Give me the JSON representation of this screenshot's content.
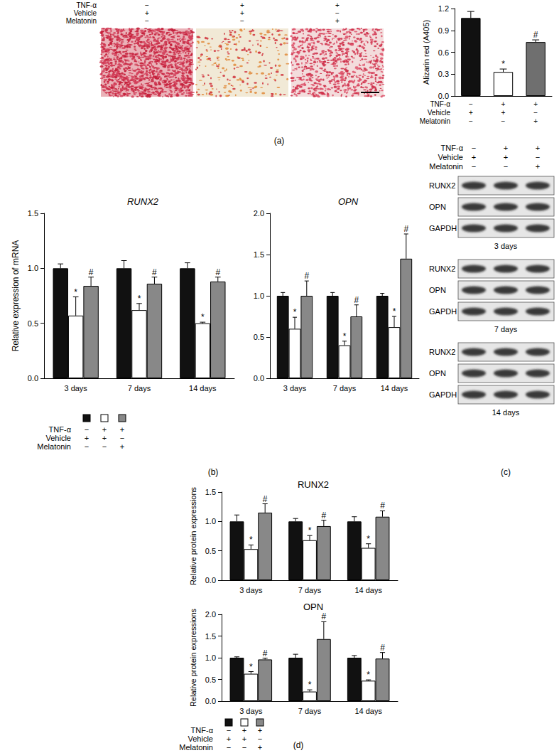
{
  "panel_labels": [
    "(a)",
    "(b)",
    "(c)",
    "(d)"
  ],
  "treatments": {
    "rows": [
      {
        "label": "TNF-α",
        "signs": [
          "−",
          "+",
          "+"
        ]
      },
      {
        "label": "Vehicle",
        "signs": [
          "+",
          "+",
          "−"
        ]
      },
      {
        "label": "Melatonin",
        "signs": [
          "−",
          "−",
          "+"
        ]
      }
    ]
  },
  "blots": {
    "rows": [
      "RUNX2",
      "OPN",
      "GAPDH"
    ],
    "times": [
      "3 days",
      "7 days",
      "14 days"
    ]
  },
  "chart_data": [
    {
      "type": "bar",
      "ylabel": "Alizarin red (A405)",
      "categories": [
        null,
        null,
        null
      ],
      "values": [
        1.07,
        0.33,
        0.74
      ],
      "errors": [
        0.09,
        0.04,
        0.03
      ],
      "annotations": [
        null,
        "*",
        "#"
      ],
      "colors": [
        "#111111",
        "#ffffff",
        "#6f6f6f"
      ],
      "ylim": [
        0,
        1.2
      ],
      "yticks": [
        {
          "value": 0,
          "label": "0.0"
        },
        0.3,
        0.6,
        0.9,
        1.2
      ],
      "grid": false
    },
    {
      "type": "bar",
      "title": "RUNX2",
      "ylabel": "Relative expression of mRNA",
      "categories": [
        "3 days",
        "7 days",
        "14 days"
      ],
      "series": [
        {
          "color": "#111111",
          "values": [
            1.0,
            1.0,
            1.0
          ],
          "errors": [
            0.04,
            0.07,
            0.05
          ],
          "annotations": [
            null,
            null,
            null
          ]
        },
        {
          "color": "#ffffff",
          "values": [
            0.57,
            0.62,
            0.5
          ],
          "errors": [
            0.17,
            0.06,
            0.01
          ],
          "annotations": [
            "*",
            "*",
            "*"
          ]
        },
        {
          "color": "#888888",
          "values": [
            0.84,
            0.86,
            0.88
          ],
          "errors": [
            0.08,
            0.06,
            0.04
          ],
          "annotations": [
            "#",
            "#",
            "#"
          ]
        }
      ],
      "ylim": [
        0,
        1.5
      ],
      "yticks": [
        {
          "value": 0,
          "label": "0.0"
        },
        0.5,
        {
          "value": 1,
          "label": "1.0"
        },
        1.5
      ],
      "grid": false
    },
    {
      "type": "bar",
      "title": "OPN",
      "categories": [
        "3 days",
        "7 days",
        "14 days"
      ],
      "series": [
        {
          "color": "#111111",
          "values": [
            1.0,
            1.0,
            1.0
          ],
          "errors": [
            0.04,
            0.04,
            0.03
          ],
          "annotations": [
            null,
            null,
            null
          ]
        },
        {
          "color": "#ffffff",
          "values": [
            0.6,
            0.4,
            0.62
          ],
          "errors": [
            0.14,
            0.05,
            0.13
          ],
          "annotations": [
            "*",
            "*",
            "*"
          ]
        },
        {
          "color": "#888888",
          "values": [
            1.0,
            0.75,
            1.45
          ],
          "errors": [
            0.18,
            0.14,
            0.3
          ],
          "annotations": [
            "#",
            "#",
            "#"
          ]
        }
      ],
      "ylim": [
        0,
        2
      ],
      "yticks": [
        {
          "value": 0,
          "label": "0.0"
        },
        0.5,
        {
          "value": 1,
          "label": "1.0"
        },
        1.5,
        {
          "value": 2,
          "label": "2.0"
        }
      ],
      "grid": false
    },
    {
      "type": "bar",
      "title": "RUNX2",
      "ylabel": "Relative protein expressions",
      "categories": [
        "3 days",
        "7 days",
        "14 days"
      ],
      "series": [
        {
          "color": "#111111",
          "values": [
            1.0,
            1.0,
            1.0
          ],
          "errors": [
            0.11,
            0.05,
            0.08
          ],
          "annotations": [
            null,
            null,
            null
          ]
        },
        {
          "color": "#ffffff",
          "values": [
            0.53,
            0.68,
            0.55
          ],
          "errors": [
            0.07,
            0.08,
            0.07
          ],
          "annotations": [
            "*",
            "*",
            "*"
          ]
        },
        {
          "color": "#888888",
          "values": [
            1.15,
            0.92,
            1.08
          ],
          "errors": [
            0.15,
            0.1,
            0.1
          ],
          "annotations": [
            "#",
            "#",
            "#"
          ]
        }
      ],
      "ylim": [
        0,
        1.5
      ],
      "yticks": [
        {
          "value": 0,
          "label": "0.0"
        },
        0.5,
        {
          "value": 1,
          "label": "1.0"
        },
        1.5
      ],
      "grid": false
    },
    {
      "type": "bar",
      "title": "OPN",
      "ylabel": "Relative protein expressions",
      "categories": [
        "3 days",
        "7 days",
        "14 days"
      ],
      "series": [
        {
          "color": "#111111",
          "values": [
            1.0,
            1.0,
            1.0
          ],
          "errors": [
            0.02,
            0.08,
            0.05
          ],
          "annotations": [
            null,
            null,
            null
          ]
        },
        {
          "color": "#ffffff",
          "values": [
            0.63,
            0.22,
            0.47
          ],
          "errors": [
            0.05,
            0.04,
            0.02
          ],
          "annotations": [
            "*",
            "*",
            "*"
          ]
        },
        {
          "color": "#888888",
          "values": [
            0.96,
            1.43,
            0.98
          ],
          "errors": [
            0.03,
            0.4,
            0.14
          ],
          "annotations": [
            "#",
            "#",
            "#"
          ]
        }
      ],
      "ylim": [
        0,
        2
      ],
      "yticks": [
        {
          "value": 0,
          "label": "0.0"
        },
        0.5,
        {
          "value": 1,
          "label": "1.0"
        },
        1.5,
        {
          "value": 2,
          "label": "2.0"
        }
      ],
      "grid": false
    }
  ]
}
